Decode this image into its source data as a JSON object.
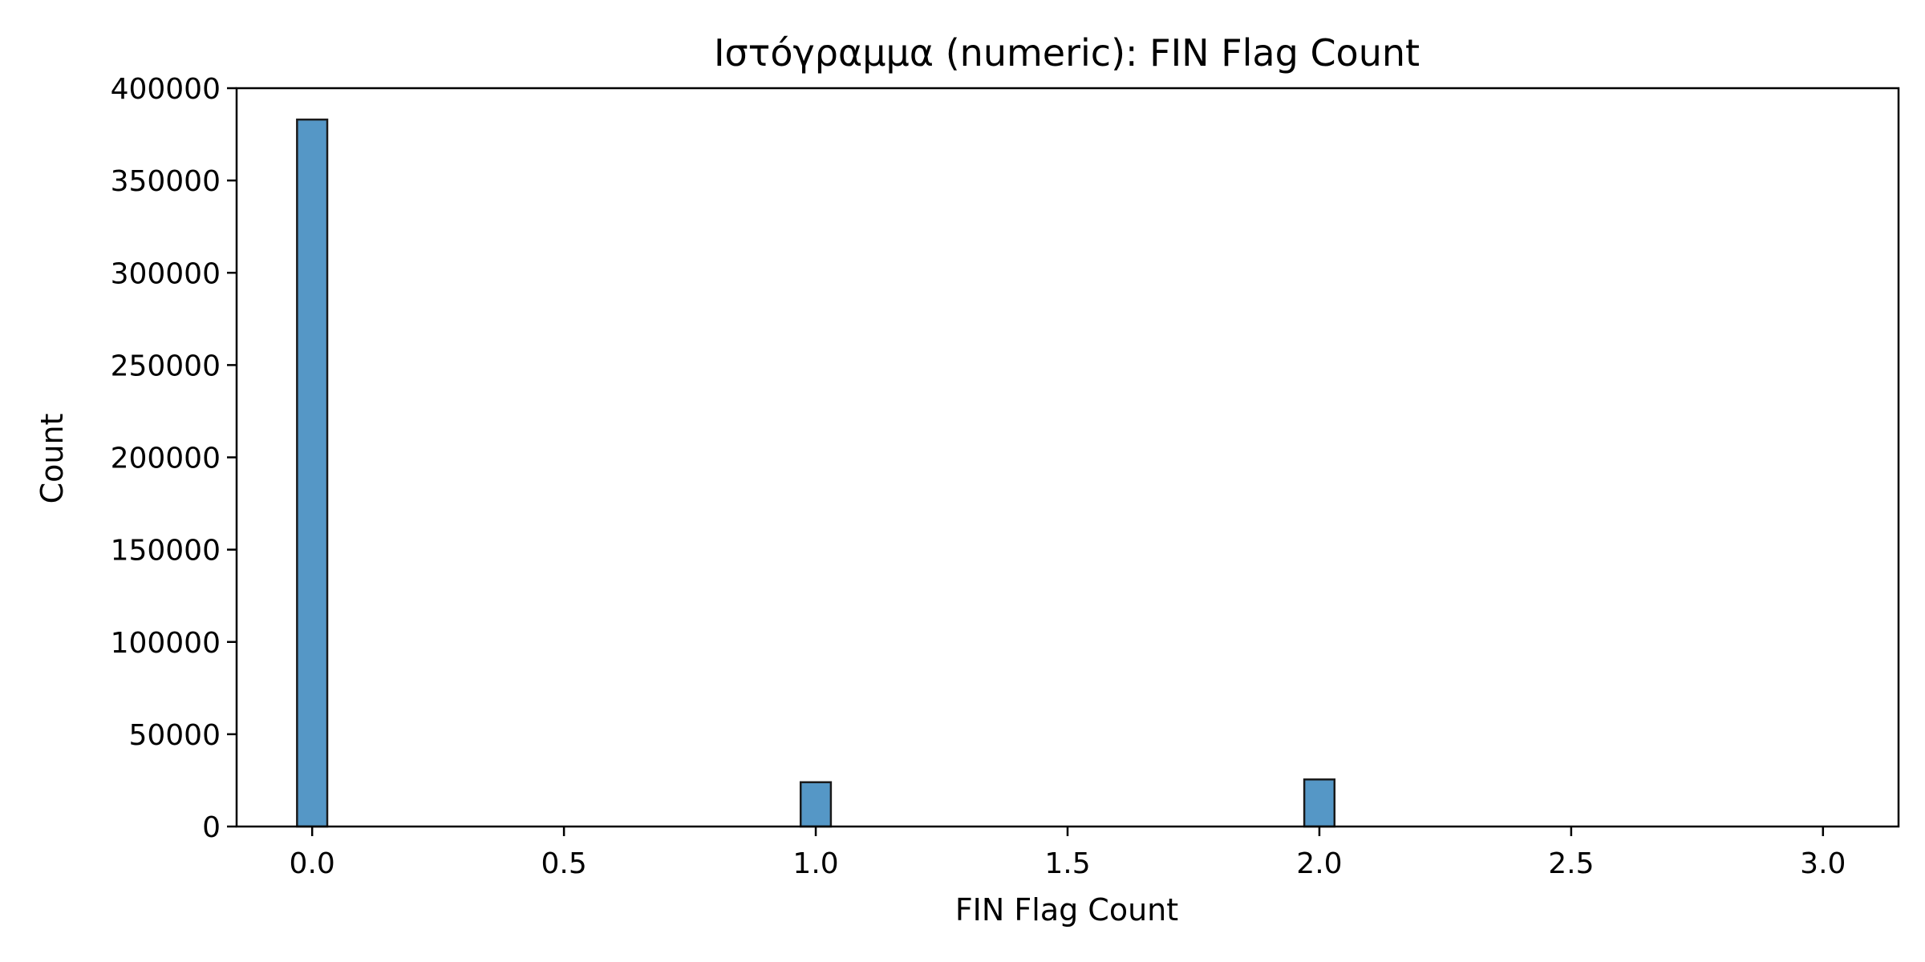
{
  "chart_data": {
    "type": "bar",
    "title": "Ιστόγραμμα (numeric): FIN Flag Count",
    "xlabel": "FIN Flag Count",
    "ylabel": "Count",
    "xlim": [
      -0.15,
      3.15
    ],
    "ylim": [
      0,
      400000
    ],
    "xticks": [
      0.0,
      0.5,
      1.0,
      1.5,
      2.0,
      2.5,
      3.0
    ],
    "xtick_labels": [
      "0.0",
      "0.5",
      "1.0",
      "1.5",
      "2.0",
      "2.5",
      "3.0"
    ],
    "yticks": [
      0,
      50000,
      100000,
      150000,
      200000,
      250000,
      300000,
      350000,
      400000
    ],
    "ytick_labels": [
      "0",
      "50000",
      "100000",
      "150000",
      "200000",
      "250000",
      "300000",
      "350000",
      "400000"
    ],
    "bin_width": 0.06,
    "bins": [
      {
        "x": 0.0,
        "count": 383000
      },
      {
        "x": 1.0,
        "count": 24000
      },
      {
        "x": 2.0,
        "count": 25500
      }
    ],
    "grid": false,
    "bar_color": "#5597C6",
    "edge_color": "#1a1a1a"
  }
}
